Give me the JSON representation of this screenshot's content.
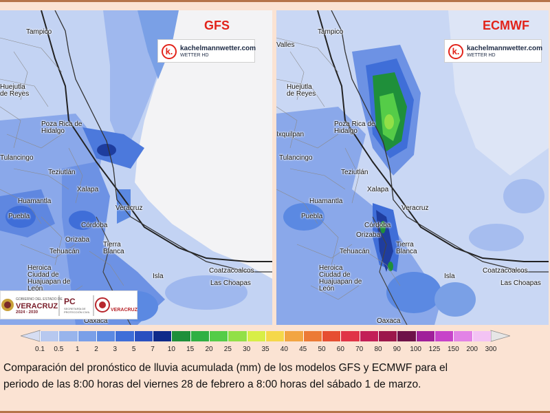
{
  "panels": {
    "left": {
      "model": "GFS",
      "logo": {
        "domain": "kachelmannwetter.com",
        "sub": "WETTER HD",
        "mark": "k."
      },
      "cities": [
        {
          "name": "Tampico"
        },
        {
          "name": "Huejutla de Reyes"
        },
        {
          "name": "Poza Rica de Hidalgo"
        },
        {
          "name": "Tulancingo"
        },
        {
          "name": "Teziutlán"
        },
        {
          "name": "Xalapa"
        },
        {
          "name": "Huamantla"
        },
        {
          "name": "Puebla"
        },
        {
          "name": "Veracruz"
        },
        {
          "name": "Córdoba"
        },
        {
          "name": "Orizaba"
        },
        {
          "name": "Tehuacán"
        },
        {
          "name": "Tierra Blanca"
        },
        {
          "name": "Heroica Ciudad de Huajuapan de León"
        },
        {
          "name": "Isla"
        },
        {
          "name": "Coatzacoalcos"
        },
        {
          "name": "Las Choapas"
        },
        {
          "name": "Oaxaca"
        }
      ]
    },
    "right": {
      "model": "ECMWF",
      "logo": {
        "domain": "kachelmannwetter.com",
        "sub": "WETTER HD",
        "mark": "k."
      },
      "cities": [
        {
          "name": "Tampico"
        },
        {
          "name": "Valles"
        },
        {
          "name": "Huejutla de Reyes"
        },
        {
          "name": "Poza Rica de Hidalgo"
        },
        {
          "name": "Ixquilpan"
        },
        {
          "name": "Tulancingo"
        },
        {
          "name": "Teziutlán"
        },
        {
          "name": "Xalapa"
        },
        {
          "name": "Huamantla"
        },
        {
          "name": "Puebla"
        },
        {
          "name": "Veracruz"
        },
        {
          "name": "Córdoba"
        },
        {
          "name": "Orizaba"
        },
        {
          "name": "Tehuacán"
        },
        {
          "name": "Tierra Blanca"
        },
        {
          "name": "Heroica Ciudad de Huajuapan de León"
        },
        {
          "name": "Isla"
        },
        {
          "name": "Coatzacoalcos"
        },
        {
          "name": "Las Choapas"
        },
        {
          "name": "Oaxaca"
        }
      ]
    }
  },
  "government_logos": {
    "state_line1": "GOBIERNO DEL ESTADO DE",
    "state_name": "VERACRUZ",
    "state_years": "2024 - 2030",
    "pc": "PC",
    "pc_sub": "SECRETARÍA DE PROTECCIÓN CIVIL",
    "sedena_sub": "VERACRUZ"
  },
  "legend": {
    "unit": "mm",
    "labels": [
      "0.1",
      "0.5",
      "1",
      "2",
      "3",
      "5",
      "7",
      "10",
      "15",
      "20",
      "25",
      "30",
      "35",
      "40",
      "45",
      "50",
      "60",
      "70",
      "80",
      "90",
      "100",
      "125",
      "150",
      "200",
      "300"
    ],
    "colors": [
      "#d6ddf2",
      "#b7c8ef",
      "#98b4ec",
      "#7a9fe8",
      "#5b89e2",
      "#3f6ed8",
      "#2a50c0",
      "#0f2a8a",
      "#1f8f3a",
      "#30b043",
      "#55cc48",
      "#92e047",
      "#d8ee47",
      "#f5d84a",
      "#f2a542",
      "#ec7a36",
      "#e64e32",
      "#e03447",
      "#c21f57",
      "#9c174b",
      "#6e1148",
      "#a0209a",
      "#c743c9",
      "#e283e6",
      "#f3c3f4",
      "#e6e6e6"
    ]
  },
  "caption": {
    "line1": "Comparación del pronóstico de lluvia acumulada (mm) de los modelos GFS y ECMWF para el",
    "line2": "periodo de las 8:00 horas del viernes 28 de febrero a 8:00 horas del sábado 1 de marzo."
  }
}
